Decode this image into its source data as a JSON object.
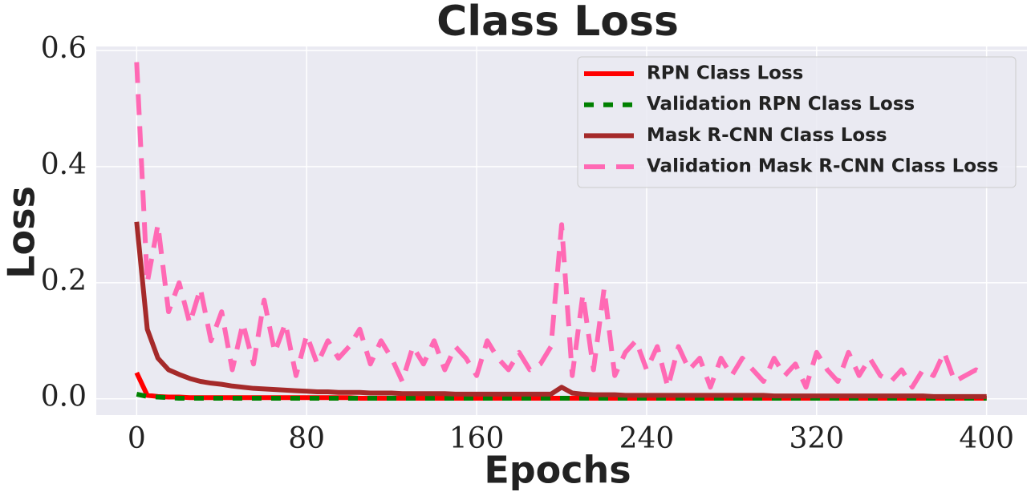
{
  "chart_data": {
    "type": "line",
    "title": "Class Loss",
    "x_label": "Epochs",
    "y_label": "Loss",
    "x": [
      0,
      5,
      10,
      15,
      20,
      25,
      30,
      35,
      40,
      45,
      50,
      55,
      60,
      65,
      70,
      75,
      80,
      85,
      90,
      95,
      100,
      105,
      110,
      115,
      120,
      125,
      130,
      135,
      140,
      145,
      150,
      155,
      160,
      165,
      170,
      175,
      180,
      185,
      190,
      195,
      200,
      205,
      210,
      215,
      220,
      225,
      230,
      235,
      240,
      245,
      250,
      255,
      260,
      265,
      270,
      275,
      280,
      285,
      290,
      295,
      300,
      305,
      310,
      315,
      320,
      325,
      330,
      335,
      340,
      345,
      350,
      355,
      360,
      365,
      370,
      375,
      380,
      385,
      390,
      395,
      400
    ],
    "series": [
      {
        "name": "RPN Class Loss",
        "color": "#ff0000",
        "linestyle": "solid",
        "values": [
          0.045,
          0.006,
          0.004,
          0.003,
          0.003,
          0.002,
          0.002,
          0.002,
          0.002,
          0.002,
          0.002,
          0.002,
          0.002,
          0.002,
          0.002,
          0.002,
          0.002,
          0.002,
          0.002,
          0.002,
          0.002,
          0.001,
          0.001,
          0.001,
          0.001,
          0.001,
          0.001,
          0.001,
          0.001,
          0.001,
          0.001,
          0.001,
          0.001,
          0.001,
          0.001,
          0.001,
          0.001,
          0.001,
          0.001,
          0.001,
          0.001,
          0.001,
          0.001,
          0.001,
          0.001,
          0.001,
          0.001,
          0.001,
          0.001,
          0.001,
          0.001,
          0.001,
          0.001,
          0.001,
          0.001,
          0.001,
          0.001,
          0.001,
          0.001,
          0.001,
          0.001,
          0.001,
          0.001,
          0.001,
          0.001,
          0.001,
          0.001,
          0.001,
          0.001,
          0.001,
          0.001,
          0.001,
          0.001,
          0.001,
          0.001,
          0.001,
          0.001,
          0.001,
          0.001,
          0.001,
          0.001
        ]
      },
      {
        "name": "Validation RPN Class Loss",
        "color": "#008000",
        "linestyle": "dashed",
        "values": [
          0.008,
          0.004,
          0.003,
          0.002,
          0.001,
          0.001,
          0.001,
          0.001,
          0.001,
          0.001,
          0.001,
          0.001,
          0.001,
          0.001,
          0.001,
          0.001,
          0.001,
          0.001,
          0.001,
          0.001,
          0.001,
          0.001,
          0.001,
          0.001,
          0.001,
          0.001,
          0.001,
          0.001,
          0.001,
          0.001,
          0.001,
          0.001,
          0.001,
          0.001,
          0.001,
          0.001,
          0.001,
          0.001,
          0.001,
          0.001,
          0.001,
          0.001,
          0.001,
          0.001,
          0.001,
          0.001,
          0.001,
          0.001,
          0.001,
          0.001,
          0.001,
          0.001,
          0.001,
          0.001,
          0.001,
          0.001,
          0.001,
          0.001,
          0.001,
          0.001,
          0.001,
          0.001,
          0.001,
          0.001,
          0.001,
          0.001,
          0.001,
          0.001,
          0.001,
          0.001,
          0.001,
          0.001,
          0.001,
          0.001,
          0.001,
          0.001,
          0.001,
          0.001,
          0.001,
          0.001,
          0.001
        ]
      },
      {
        "name": "Mask R-CNN Class Loss",
        "color": "#a52a2a",
        "linestyle": "solid",
        "values": [
          0.305,
          0.12,
          0.07,
          0.05,
          0.042,
          0.035,
          0.03,
          0.027,
          0.025,
          0.022,
          0.02,
          0.018,
          0.017,
          0.016,
          0.015,
          0.014,
          0.013,
          0.012,
          0.012,
          0.011,
          0.011,
          0.011,
          0.01,
          0.01,
          0.01,
          0.009,
          0.009,
          0.009,
          0.009,
          0.009,
          0.008,
          0.008,
          0.008,
          0.008,
          0.008,
          0.008,
          0.008,
          0.008,
          0.008,
          0.008,
          0.02,
          0.01,
          0.008,
          0.007,
          0.007,
          0.007,
          0.006,
          0.006,
          0.006,
          0.006,
          0.006,
          0.006,
          0.006,
          0.006,
          0.006,
          0.006,
          0.006,
          0.006,
          0.006,
          0.006,
          0.005,
          0.005,
          0.005,
          0.005,
          0.005,
          0.005,
          0.005,
          0.005,
          0.005,
          0.005,
          0.005,
          0.005,
          0.005,
          0.005,
          0.005,
          0.004,
          0.004,
          0.004,
          0.004,
          0.004,
          0.004
        ]
      },
      {
        "name": "Validation Mask R-CNN Class Loss",
        "color": "#ff69b4",
        "linestyle": "dashed",
        "values": [
          0.58,
          0.2,
          0.3,
          0.15,
          0.2,
          0.13,
          0.19,
          0.1,
          0.15,
          0.05,
          0.13,
          0.06,
          0.17,
          0.08,
          0.13,
          0.04,
          0.11,
          0.06,
          0.1,
          0.07,
          0.09,
          0.12,
          0.06,
          0.1,
          0.07,
          0.03,
          0.09,
          0.06,
          0.1,
          0.05,
          0.09,
          0.07,
          0.04,
          0.1,
          0.07,
          0.05,
          0.08,
          0.05,
          0.06,
          0.09,
          0.3,
          0.04,
          0.18,
          0.05,
          0.19,
          0.04,
          0.08,
          0.1,
          0.05,
          0.09,
          0.02,
          0.09,
          0.05,
          0.07,
          0.02,
          0.07,
          0.04,
          0.07,
          0.05,
          0.03,
          0.07,
          0.04,
          0.06,
          0.02,
          0.08,
          0.05,
          0.03,
          0.08,
          0.04,
          0.07,
          0.04,
          0.03,
          0.05,
          0.02,
          0.05,
          0.04,
          0.08,
          0.03,
          0.04,
          0.05,
          0.04
        ]
      }
    ],
    "xlim": [
      -19,
      419
    ],
    "ylim": [
      -0.028,
      0.607
    ],
    "xticks": [
      0,
      80,
      160,
      240,
      320,
      400
    ],
    "yticks": [
      {
        "value": 0,
        "label": "0.0"
      },
      0.2,
      0.4,
      0.6
    ],
    "grid": true,
    "legend": "upper right"
  }
}
